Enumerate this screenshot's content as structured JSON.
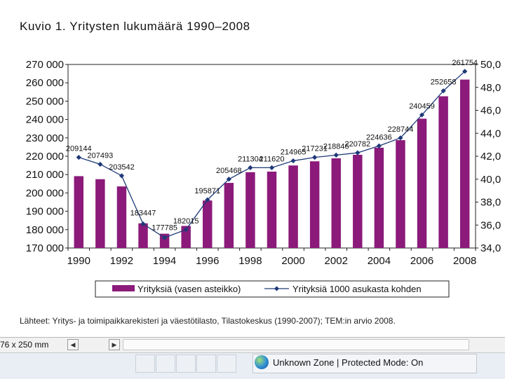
{
  "title": "Kuvio 1. Yritysten lukumäärä 1990–2008",
  "source": "Lähteet: Yritys- ja toimipaikkarekisteri ja väestötilasto, Tilastokeskus (1990-2007); TEM:in arvio 2008.",
  "chart_data": {
    "type": "bar+line",
    "years": [
      1990,
      1991,
      1992,
      1993,
      1994,
      1995,
      1996,
      1997,
      1998,
      1999,
      2000,
      2001,
      2002,
      2003,
      2004,
      2005,
      2006,
      2007,
      2008
    ],
    "x_tick_labels": [
      "1990",
      "1992",
      "1994",
      "1996",
      "1998",
      "2000",
      "2002",
      "2004",
      "2006",
      "2008"
    ],
    "bar_series": {
      "name": "Yrityksiä (vasen asteikko)",
      "color": "#8b1a7a",
      "values": [
        209144,
        207493,
        203542,
        183447,
        177785,
        182015,
        195871,
        205468,
        211304,
        211620,
        214965,
        217231,
        218846,
        220782,
        224636,
        228744,
        240459,
        252658,
        261754
      ]
    },
    "line_series": {
      "name": "Yrityksiä 1000 asukasta kohden",
      "color": "#1f3a78",
      "values": [
        41.9,
        41.3,
        40.3,
        36.1,
        34.9,
        35.6,
        38.2,
        40.0,
        41.0,
        41.0,
        41.6,
        41.9,
        42.1,
        42.3,
        42.9,
        43.6,
        45.6,
        47.7,
        49.4
      ]
    },
    "data_labels": [
      "209144",
      "207493",
      "203542",
      "183447",
      "177785",
      "182015",
      "195871",
      "205468",
      "211304",
      "211620",
      "214965",
      "217231",
      "218846",
      "220782",
      "224636",
      "228744",
      "240459",
      "252658",
      "261754"
    ],
    "left_axis": {
      "min": 170000,
      "max": 270000,
      "step": 10000,
      "tick_labels": [
        "170 000",
        "180 000",
        "190 000",
        "200 000",
        "210 000",
        "220 000",
        "230 000",
        "240 000",
        "250 000",
        "260 000",
        "270 000"
      ]
    },
    "right_axis": {
      "min": 34,
      "max": 50,
      "step": 2,
      "tick_labels": [
        "34,0",
        "36,0",
        "38,0",
        "40,0",
        "42,0",
        "44,0",
        "46,0",
        "48,0",
        "50,0"
      ]
    }
  },
  "window": {
    "dimensions": "76 x 250 mm",
    "scroll_left_glyph": "◀",
    "scroll_right_glyph": "▶",
    "zone_text": "Unknown Zone | Protected Mode: On",
    "zone_icon": "globe-icon"
  }
}
